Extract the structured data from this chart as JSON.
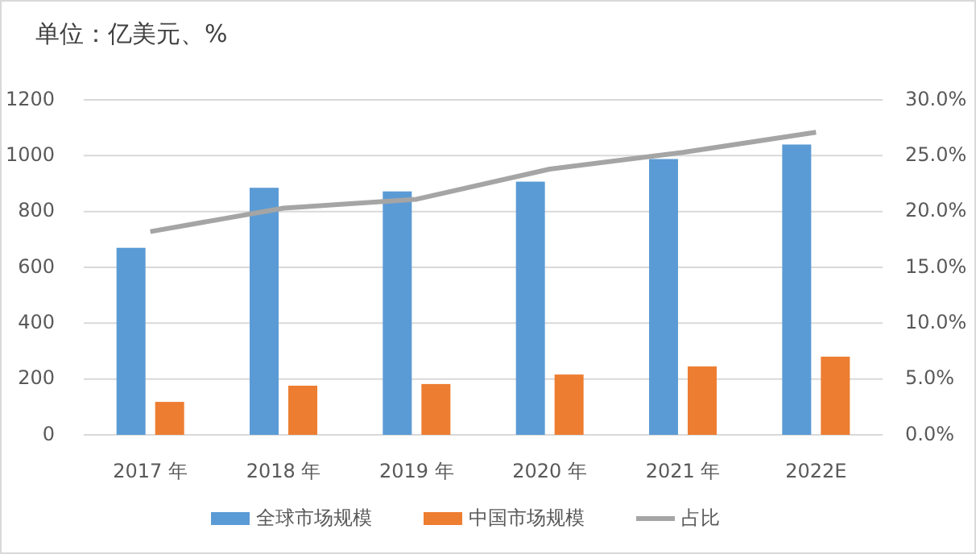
{
  "chart_data": {
    "type": "bar",
    "title": "单位：亿美元、%",
    "categories": [
      "2017 年",
      "2018 年",
      "2019 年",
      "2020 年",
      "2021 年",
      "2022E"
    ],
    "series": [
      {
        "name": "全球市场规模",
        "color": "#5b9bd5",
        "values": [
          670,
          885,
          872,
          907,
          988,
          1040
        ]
      },
      {
        "name": "中国市场规模",
        "color": "#ed7d31",
        "values": [
          118,
          176,
          182,
          216,
          245,
          280
        ]
      },
      {
        "name": "占比",
        "type": "line",
        "axis": "y2",
        "color": "#a5a5a5",
        "values": [
          18.2,
          20.3,
          21.1,
          23.8,
          25.3,
          27.1
        ]
      }
    ],
    "ylim": [
      0,
      1200
    ],
    "yticks": [
      0,
      200,
      400,
      600,
      800,
      1000,
      1200
    ],
    "y2lim": [
      0,
      30
    ],
    "y2ticks": [
      {
        "value": 0,
        "label": "0.0%"
      },
      {
        "value": 5,
        "label": "5.0%"
      },
      {
        "value": 10,
        "label": "10.0%"
      },
      {
        "value": 15,
        "label": "15.0%"
      },
      {
        "value": 20,
        "label": "20.0%"
      },
      {
        "value": 25,
        "label": "25.0%"
      },
      {
        "value": 30,
        "label": "30.0%"
      }
    ],
    "grid": "y",
    "legend": "bottom"
  }
}
